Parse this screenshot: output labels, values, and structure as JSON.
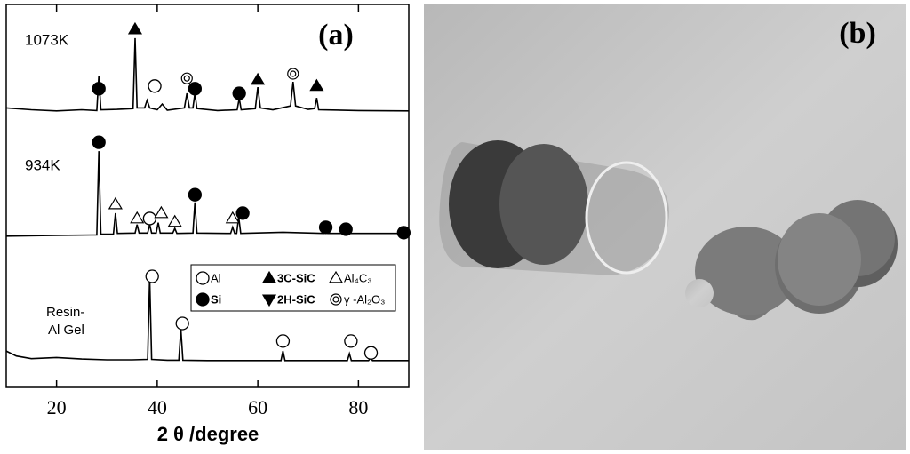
{
  "chart_data": {
    "type": "line",
    "panel_label": "(a)",
    "x_label": "2 θ /degree",
    "xlim": [
      10,
      90
    ],
    "xticks": [
      20,
      40,
      60,
      80
    ],
    "ylim": [
      0,
      100
    ],
    "series": [
      {
        "name": "1073K",
        "color": "#000000",
        "x": [
          10,
          15,
          20,
          25,
          28,
          28.4,
          28.8,
          32,
          35.2,
          35.6,
          36,
          37.5,
          38,
          38.5,
          40,
          41,
          42,
          45.4,
          45.9,
          46.4,
          47.1,
          47.5,
          47.9,
          52,
          55.9,
          56.3,
          56.7,
          59.5,
          60,
          60.5,
          63,
          66.5,
          67,
          67.5,
          70,
          71.3,
          71.7,
          72.1,
          80,
          90
        ],
        "values": [
          73,
          72.5,
          72.2,
          72.5,
          72.3,
          81.4,
          72.5,
          72.6,
          72.8,
          91.2,
          73,
          73,
          75,
          73,
          72.5,
          74,
          72.4,
          73,
          76.8,
          73,
          73,
          76.8,
          72.8,
          72.3,
          72.5,
          75.5,
          72.5,
          72.8,
          78.4,
          73,
          72.5,
          73.5,
          79.8,
          73.5,
          72.6,
          72.8,
          75.6,
          72.5,
          72.3,
          72.2
        ]
      },
      {
        "name": "934K",
        "color": "#000000",
        "x": [
          10,
          20,
          27,
          28,
          28.4,
          28.8,
          31.3,
          31.7,
          32.1,
          35.6,
          36,
          36.4,
          38.1,
          38.5,
          38.9,
          39.8,
          40.2,
          40.6,
          43.1,
          43.5,
          43.9,
          47.1,
          47.5,
          47.9,
          54.6,
          55,
          55.4,
          55.8,
          56.2,
          56.6,
          65,
          73.1,
          73.5,
          73.9,
          76.6,
          77,
          77.4,
          88.1,
          88.5,
          88.9,
          90
        ],
        "values": [
          39.5,
          39.7,
          39.8,
          39.8,
          61.7,
          40,
          40,
          45.5,
          40.2,
          40.3,
          42.5,
          40.3,
          40.3,
          42.5,
          40.3,
          40.3,
          43,
          40.3,
          40.3,
          41.5,
          40.2,
          40.3,
          48.3,
          40.3,
          40.2,
          41.8,
          40.2,
          40.2,
          44.5,
          40.2,
          40.5,
          40.2,
          41,
          40.2,
          40.2,
          41,
          40.2,
          40.2,
          41,
          40.2,
          40.2
        ]
      },
      {
        "name": "Resin- Al Gel",
        "color": "#000000",
        "x": [
          10,
          12,
          15,
          20,
          25,
          30,
          35,
          38.1,
          38.5,
          38.9,
          42,
          44.3,
          44.7,
          45.1,
          50,
          60,
          64.6,
          65,
          65.4,
          70,
          77.8,
          78.2,
          78.6,
          82,
          82.4,
          82.8,
          90
        ],
        "values": [
          9.5,
          8.2,
          7.5,
          7.8,
          7.4,
          7.2,
          7.2,
          7.3,
          28.8,
          7.3,
          7.1,
          7.1,
          15.3,
          7.1,
          7,
          7,
          7,
          9.5,
          7,
          7,
          7,
          8.8,
          7,
          7,
          7.7,
          7,
          7
        ]
      }
    ],
    "legend": [
      {
        "label": "Al",
        "shape": "open-circle"
      },
      {
        "label": "3C-SiC",
        "shape": "filled-triangle"
      },
      {
        "label": "Al₄C₃",
        "shape": "open-triangle"
      },
      {
        "label": "Si",
        "shape": "filled-circle"
      },
      {
        "label": "2H-SiC",
        "shape": "filled-down-triangle"
      },
      {
        "label": "γ -Al₂O₃",
        "shape": "double-circle"
      }
    ],
    "markers": [
      {
        "x": 28.4,
        "y": 78,
        "shape": "filled-circle"
      },
      {
        "x": 35.6,
        "y": 93.5,
        "shape": "filled-triangle"
      },
      {
        "x": 39.5,
        "y": 78.7,
        "shape": "open-circle"
      },
      {
        "x": 45.9,
        "y": 80.7,
        "shape": "double-circle"
      },
      {
        "x": 47.5,
        "y": 78,
        "shape": "filled-circle"
      },
      {
        "x": 56.3,
        "y": 76.8,
        "shape": "filled-circle"
      },
      {
        "x": 60,
        "y": 80.3,
        "shape": "filled-triangle"
      },
      {
        "x": 67,
        "y": 81.9,
        "shape": "double-circle"
      },
      {
        "x": 71.7,
        "y": 78.7,
        "shape": "filled-triangle"
      },
      {
        "x": 28.4,
        "y": 64,
        "shape": "filled-circle"
      },
      {
        "x": 31.7,
        "y": 47.8,
        "shape": "open-triangle"
      },
      {
        "x": 36,
        "y": 44.1,
        "shape": "open-triangle"
      },
      {
        "x": 38.5,
        "y": 44.1,
        "shape": "open-circle"
      },
      {
        "x": 40.8,
        "y": 45.5,
        "shape": "open-triangle"
      },
      {
        "x": 43.5,
        "y": 43.2,
        "shape": "open-triangle"
      },
      {
        "x": 47.5,
        "y": 50.3,
        "shape": "filled-circle"
      },
      {
        "x": 55,
        "y": 44.1,
        "shape": "open-triangle"
      },
      {
        "x": 57,
        "y": 45.5,
        "shape": "filled-circle"
      },
      {
        "x": 73.5,
        "y": 41.8,
        "shape": "filled-circle"
      },
      {
        "x": 77.5,
        "y": 41.3,
        "shape": "filled-circle"
      },
      {
        "x": 89,
        "y": 40.4,
        "shape": "filled-circle"
      },
      {
        "x": 39,
        "y": 29,
        "shape": "open-circle"
      },
      {
        "x": 45,
        "y": 16.7,
        "shape": "open-circle"
      },
      {
        "x": 65,
        "y": 12.1,
        "shape": "open-circle"
      },
      {
        "x": 78.5,
        "y": 12.1,
        "shape": "open-circle"
      },
      {
        "x": 82.5,
        "y": 9,
        "shape": "open-circle"
      }
    ]
  },
  "photo_label": "(b)"
}
